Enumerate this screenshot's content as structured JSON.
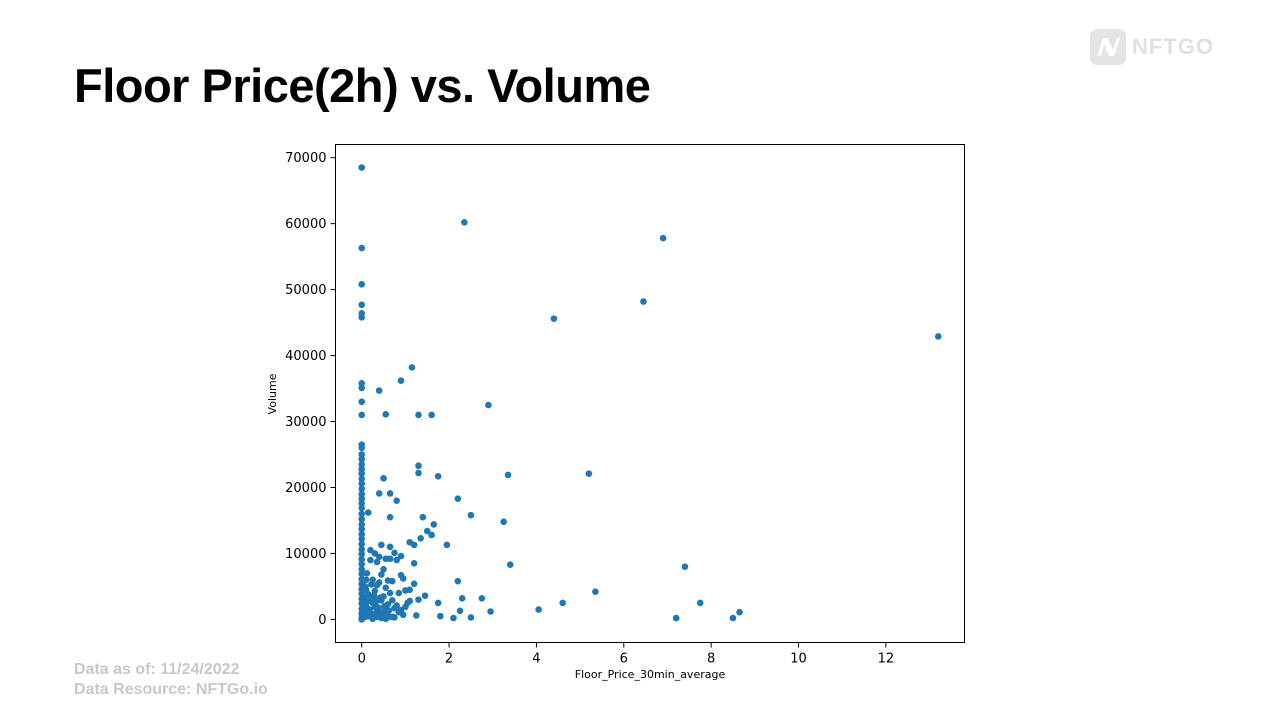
{
  "slide": {
    "title": "Floor Price(2h) vs. Volume",
    "brand": "NFTGO",
    "footer": {
      "date_line": "Data as of: 11/24/2022",
      "source_line": "Data Resource: NFTGo.io"
    }
  },
  "colors": {
    "point": "#1f77b4",
    "footer_text": "#c8c8c8",
    "brand_gray": "#e0e0e0"
  },
  "chart_data": {
    "type": "scatter",
    "xlabel": "Floor_Price_30min_average",
    "ylabel": "Volume",
    "xlim": [
      -0.6,
      13.8
    ],
    "ylim": [
      -3500,
      72000
    ],
    "xticks": [
      0,
      2,
      4,
      6,
      8,
      10,
      12
    ],
    "yticks": [
      0,
      10000,
      20000,
      30000,
      40000,
      50000,
      60000,
      70000
    ],
    "grid": false,
    "points": [
      [
        0,
        68500
      ],
      [
        0,
        56300
      ],
      [
        0,
        50800
      ],
      [
        0,
        47700
      ],
      [
        0,
        46400
      ],
      [
        0,
        45800
      ],
      [
        0,
        35800
      ],
      [
        0,
        35100
      ],
      [
        0,
        33000
      ],
      [
        0,
        31000
      ],
      [
        0,
        26500
      ],
      [
        0,
        26000
      ],
      [
        0,
        25000
      ],
      [
        0,
        24300
      ],
      [
        0,
        23500
      ],
      [
        0,
        22800
      ],
      [
        0,
        22100
      ],
      [
        0,
        21300
      ],
      [
        0,
        20600
      ],
      [
        0,
        19800
      ],
      [
        0,
        19000
      ],
      [
        0,
        18300
      ],
      [
        0,
        17600
      ],
      [
        0,
        16900
      ],
      [
        0,
        16000
      ],
      [
        0,
        15200
      ],
      [
        0,
        14400
      ],
      [
        0,
        13700
      ],
      [
        0,
        12900
      ],
      [
        0,
        12200
      ],
      [
        0,
        11400
      ],
      [
        0,
        10600
      ],
      [
        0,
        9900
      ],
      [
        0,
        9100
      ],
      [
        0,
        8400
      ],
      [
        0,
        7600
      ],
      [
        0,
        6900
      ],
      [
        0,
        6100
      ],
      [
        0,
        5400
      ],
      [
        0,
        4600
      ],
      [
        0,
        3900
      ],
      [
        0,
        3100
      ],
      [
        0,
        2400
      ],
      [
        0,
        1600
      ],
      [
        0,
        900
      ],
      [
        0,
        300
      ],
      [
        0,
        0
      ],
      [
        0.15,
        16200
      ],
      [
        0.2,
        10500
      ],
      [
        0.2,
        9000
      ],
      [
        0.25,
        6000
      ],
      [
        0.3,
        10000
      ],
      [
        0.35,
        8700
      ],
      [
        0.4,
        9500
      ],
      [
        0.4,
        5600
      ],
      [
        0.45,
        11300
      ],
      [
        0.45,
        6800
      ],
      [
        0.5,
        7600
      ],
      [
        0.55,
        9200
      ],
      [
        0.6,
        5900
      ],
      [
        0.65,
        11000
      ],
      [
        0.65,
        9200
      ],
      [
        0.7,
        5800
      ],
      [
        0.75,
        10100
      ],
      [
        0.8,
        9000
      ],
      [
        0.9,
        9600
      ],
      [
        0.9,
        6700
      ],
      [
        0.95,
        6200
      ],
      [
        0.85,
        4000
      ],
      [
        1.0,
        4400
      ],
      [
        1.1,
        11700
      ],
      [
        1.2,
        11300
      ],
      [
        1.1,
        4500
      ],
      [
        1.2,
        5400
      ],
      [
        1.2,
        8500
      ],
      [
        1.05,
        2500
      ],
      [
        1.3,
        3000
      ],
      [
        1.45,
        3600
      ],
      [
        1.35,
        12300
      ],
      [
        1.5,
        13400
      ],
      [
        1.6,
        12800
      ],
      [
        1.65,
        14400
      ],
      [
        1.4,
        15500
      ],
      [
        0.65,
        15500
      ],
      [
        0.8,
        18000
      ],
      [
        0.4,
        19100
      ],
      [
        0.65,
        19100
      ],
      [
        0.5,
        21400
      ],
      [
        1.3,
        22200
      ],
      [
        1.3,
        23300
      ],
      [
        1.75,
        21700
      ],
      [
        2.2,
        18300
      ],
      [
        1.95,
        11300
      ],
      [
        2.2,
        5800
      ],
      [
        2.5,
        15800
      ],
      [
        3.25,
        14800
      ],
      [
        3.35,
        21900
      ],
      [
        3.4,
        8300
      ],
      [
        0.4,
        34700
      ],
      [
        0.55,
        31100
      ],
      [
        0.9,
        36200
      ],
      [
        1.15,
        38200
      ],
      [
        1.3,
        31000
      ],
      [
        1.6,
        31000
      ],
      [
        2.9,
        32500
      ],
      [
        2.35,
        60200
      ],
      [
        4.4,
        45600
      ],
      [
        5.2,
        22100
      ],
      [
        6.45,
        48200
      ],
      [
        6.9,
        57800
      ],
      [
        13.2,
        42900
      ],
      [
        7.4,
        8000
      ],
      [
        5.35,
        4200
      ],
      [
        4.6,
        2500
      ],
      [
        4.05,
        1500
      ],
      [
        2.75,
        3200
      ],
      [
        2.3,
        3200
      ],
      [
        2.95,
        1200
      ],
      [
        2.25,
        1300
      ],
      [
        1.75,
        2500
      ],
      [
        1.8,
        500
      ],
      [
        2.1,
        200
      ],
      [
        2.5,
        300
      ],
      [
        1.25,
        600
      ],
      [
        7.75,
        2500
      ],
      [
        8.65,
        1100
      ],
      [
        8.5,
        200
      ],
      [
        7.2,
        200
      ],
      [
        0.1,
        6000
      ],
      [
        0.1,
        4500
      ],
      [
        0.15,
        3800
      ],
      [
        0.2,
        3200
      ],
      [
        0.25,
        2500
      ],
      [
        0.3,
        1900
      ],
      [
        0.35,
        1300
      ],
      [
        0.4,
        700
      ],
      [
        0.45,
        200
      ],
      [
        0.5,
        900
      ],
      [
        0.55,
        1600
      ],
      [
        0.6,
        2300
      ],
      [
        0.7,
        2900
      ],
      [
        0.75,
        1700
      ],
      [
        0.85,
        1100
      ],
      [
        0.95,
        700
      ],
      [
        0.7,
        400
      ],
      [
        0.6,
        300
      ],
      [
        0.3,
        4300
      ],
      [
        0.35,
        5200
      ],
      [
        0.5,
        3500
      ],
      [
        0.55,
        4800
      ],
      [
        0.65,
        4000
      ],
      [
        0.45,
        2900
      ],
      [
        0.2,
        1000
      ],
      [
        0.15,
        500
      ],
      [
        0.25,
        100
      ],
      [
        0.1,
        2000
      ],
      [
        0.1,
        1200
      ],
      [
        0.05,
        3300
      ],
      [
        0.05,
        2100
      ],
      [
        0.05,
        800
      ],
      [
        0.08,
        5000
      ],
      [
        0.12,
        7000
      ],
      [
        0.22,
        5300
      ],
      [
        0.28,
        3600
      ],
      [
        0.33,
        2700
      ],
      [
        0.38,
        1800
      ],
      [
        0.42,
        3300
      ],
      [
        0.48,
        1200
      ],
      [
        0.52,
        2000
      ],
      [
        0.58,
        700
      ],
      [
        0.62,
        1300
      ],
      [
        0.8,
        2100
      ],
      [
        0.9,
        1400
      ],
      [
        1.0,
        1900
      ],
      [
        1.1,
        2800
      ],
      [
        0.75,
        300
      ],
      [
        0.55,
        100
      ],
      [
        0.35,
        400
      ],
      [
        0.18,
        1500
      ],
      [
        0.12,
        2700
      ],
      [
        0.27,
        800
      ],
      [
        0.32,
        3000
      ],
      [
        0.08,
        400
      ]
    ]
  }
}
